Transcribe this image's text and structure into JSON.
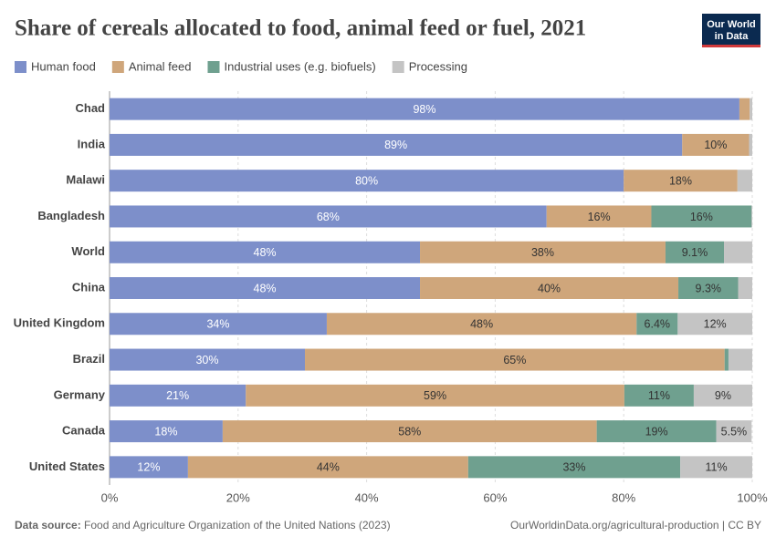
{
  "chart_data": {
    "type": "stacked-bar-horizontal",
    "title": "Share of cereals allocated to food, animal feed or fuel, 2021",
    "logo": [
      "Our World",
      "in Data"
    ],
    "categories": [
      "Chad",
      "India",
      "Malawi",
      "Bangladesh",
      "World",
      "China",
      "United Kingdom",
      "Brazil",
      "Germany",
      "Canada",
      "United States"
    ],
    "series": [
      {
        "name": "Human food",
        "color": "#7d8fca",
        "values": [
          98,
          89.1,
          80,
          68,
          48.3,
          48.3,
          33.8,
          30.4,
          21.2,
          17.6,
          12.2
        ],
        "value_labels": [
          "98%",
          "89%",
          "80%",
          "68%",
          "48%",
          "48%",
          "34%",
          "30%",
          "21%",
          "18%",
          "12%"
        ]
      },
      {
        "name": "Animal feed",
        "color": "#cfa67b",
        "values": [
          1.6,
          10.4,
          17.7,
          16.3,
          38.2,
          40.2,
          48.2,
          65.3,
          58.9,
          58.2,
          43.6
        ],
        "value_labels": [
          null,
          "10%",
          "18%",
          "16%",
          "38%",
          "40%",
          "48%",
          "65%",
          "59%",
          "58%",
          "44%"
        ]
      },
      {
        "name": "Industrial uses (e.g. biofuels)",
        "color": "#6fa08f",
        "values": [
          0,
          0,
          0,
          15.6,
          9.1,
          9.3,
          6.4,
          0.6,
          10.8,
          18.6,
          33
        ],
        "value_labels": [
          null,
          null,
          null,
          "16%",
          "9.1%",
          "9.3%",
          "6.4%",
          null,
          "11%",
          "19%",
          "33%"
        ]
      },
      {
        "name": "Processing",
        "color": "#c4c4c4",
        "values": [
          0.4,
          0.5,
          2.3,
          0.1,
          4.4,
          2.2,
          11.6,
          3.7,
          9.1,
          5.5,
          11.2
        ],
        "value_labels": [
          null,
          null,
          null,
          null,
          null,
          null,
          "12%",
          null,
          "9%",
          "5.5%",
          "11%"
        ]
      }
    ],
    "xlim": [
      0,
      100
    ],
    "xticks": [
      {
        "value": 0,
        "label": "0%"
      },
      {
        "value": 20,
        "label": "20%"
      },
      {
        "value": 40,
        "label": "40%"
      },
      {
        "value": 60,
        "label": "60%"
      },
      {
        "value": 80,
        "label": "80%"
      },
      {
        "value": 100,
        "label": "100%"
      }
    ],
    "grid": true,
    "source_label": "Data source:",
    "source": "Food and Agriculture Organization of the United Nations (2023)",
    "footer_right": "OurWorldinData.org/agricultural-production | CC BY"
  }
}
